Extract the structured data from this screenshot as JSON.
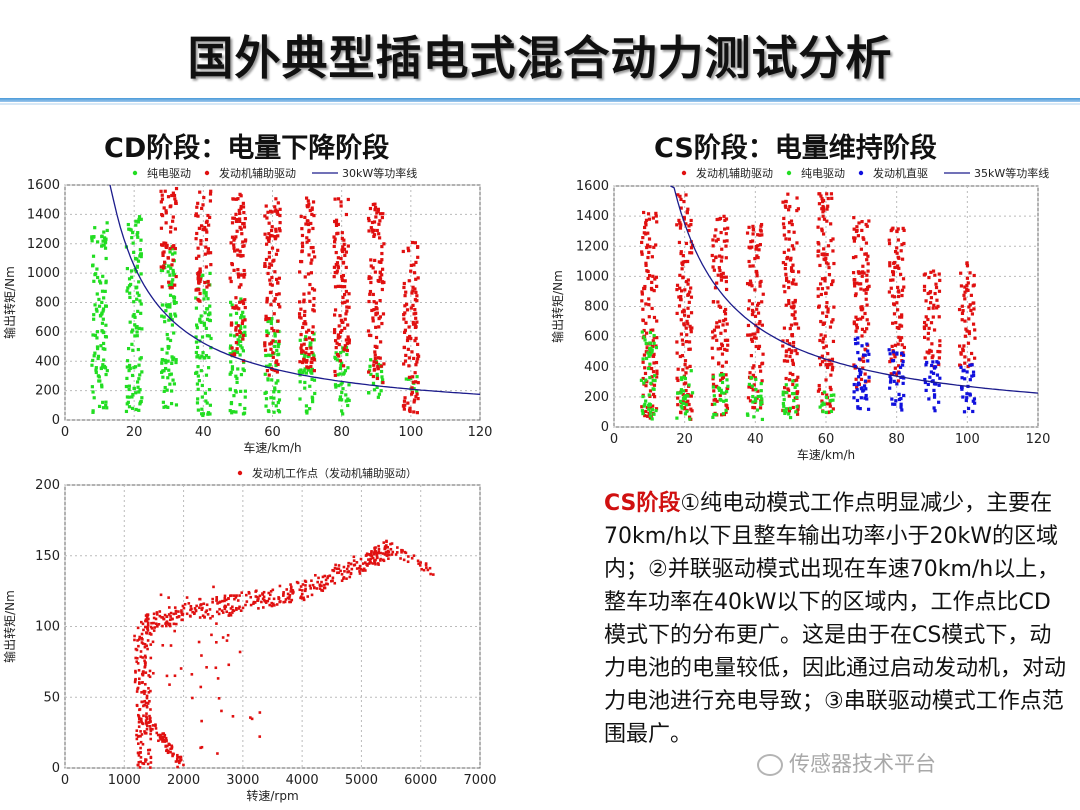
{
  "title": "国外典型插电式混合动力测试分析",
  "headings": {
    "cd": "CD阶段：电量下降阶段",
    "cs": "CS阶段：电量维持阶段"
  },
  "caption": {
    "highlight": "CS阶段",
    "text": "①纯电动模式工作点明显减少，主要在70km/h以下且整车输出功率小于20kW的区域内；②并联驱动模式出现在车速70km/h以上，整车功率在40kW以下的区域内，工作点比CD模式下的分布更广。这是由于在CS模式下，动力电池的电量较低，因此通过启动发动机，对动力电池进行充电导致；③串联驱动模式工作点范围最广。"
  },
  "watermark": "传感器技术平台",
  "colors": {
    "ev": "#22dd22",
    "assist": "#e01010",
    "direct": "#1010dd",
    "power_line": "#1c1c8c"
  },
  "chart_data": [
    {
      "type": "scatter",
      "xlabel": "车速/km/h",
      "ylabel": "输出转矩/Nm",
      "xlim": [
        0,
        120
      ],
      "ylim": [
        0,
        1600
      ],
      "xticks": [
        0,
        20,
        40,
        60,
        80,
        100,
        120
      ],
      "yticks": [
        0,
        200,
        400,
        600,
        800,
        1000,
        1200,
        1400,
        1600
      ],
      "legend_placement": "top",
      "series": [
        {
          "name": "纯电驱动",
          "color": "#22dd22",
          "kind": "clusters",
          "clusters": [
            [
              10,
              50,
              1350
            ],
            [
              20,
              50,
              1400
            ],
            [
              30,
              60,
              1200
            ],
            [
              40,
              30,
              1000
            ],
            [
              50,
              30,
              850
            ],
            [
              60,
              30,
              700
            ],
            [
              70,
              40,
              600
            ],
            [
              80,
              40,
              500
            ],
            [
              90,
              150,
              420
            ],
            [
              100,
              180,
              300
            ]
          ]
        },
        {
          "name": "发动机辅助驱动",
          "color": "#e01010",
          "kind": "clusters",
          "clusters": [
            [
              30,
              900,
              1580
            ],
            [
              40,
              800,
              1570
            ],
            [
              50,
              400,
              1550
            ],
            [
              60,
              300,
              1530
            ],
            [
              70,
              300,
              1520
            ],
            [
              80,
              300,
              1510
            ],
            [
              90,
              250,
              1480
            ],
            [
              100,
              50,
              1230
            ]
          ]
        },
        {
          "name": "30kW等功率线",
          "color": "#1c1c8c",
          "kind": "power_curve",
          "k": 21000,
          "x_start": 13,
          "x_end": 120
        }
      ]
    },
    {
      "type": "scatter",
      "xlabel": "车速/km/h",
      "ylabel": "输出转矩/Nm",
      "xlim": [
        0,
        120
      ],
      "ylim": [
        0,
        1600
      ],
      "xticks": [
        0,
        20,
        40,
        60,
        80,
        100,
        120
      ],
      "yticks": [
        0,
        200,
        400,
        600,
        800,
        1000,
        1200,
        1400,
        1600
      ],
      "legend_placement": "top",
      "series": [
        {
          "name": "发动机辅助驱动",
          "color": "#e01010",
          "kind": "clusters",
          "clusters": [
            [
              10,
              50,
              1430
            ],
            [
              20,
              50,
              1580
            ],
            [
              30,
              80,
              1400
            ],
            [
              40,
              100,
              1350
            ],
            [
              50,
              80,
              1550
            ],
            [
              60,
              80,
              1550
            ],
            [
              70,
              250,
              1400
            ],
            [
              80,
              300,
              1320
            ],
            [
              90,
              400,
              1060
            ],
            [
              100,
              400,
              1100
            ]
          ]
        },
        {
          "name": "纯电驱动",
          "color": "#22dd22",
          "kind": "clusters",
          "clusters": [
            [
              10,
              50,
              650
            ],
            [
              20,
              50,
              380
            ],
            [
              30,
              50,
              350
            ],
            [
              40,
              50,
              330
            ],
            [
              50,
              50,
              320
            ],
            [
              60,
              80,
              250
            ]
          ]
        },
        {
          "name": "发动机直驱",
          "color": "#1010dd",
          "kind": "clusters",
          "clusters": [
            [
              70,
              100,
              600
            ],
            [
              80,
              100,
              520
            ],
            [
              90,
              100,
              450
            ],
            [
              100,
              80,
              420
            ]
          ]
        },
        {
          "name": "35kW等功率线",
          "color": "#1c1c8c",
          "kind": "power_curve",
          "k": 27000,
          "x_start": 16,
          "x_end": 120
        }
      ]
    },
    {
      "type": "scatter",
      "xlabel": "转速/rpm",
      "ylabel": "输出转矩/Nm",
      "xlim": [
        0,
        7000
      ],
      "ylim": [
        0,
        200
      ],
      "xticks": [
        0,
        1000,
        2000,
        3000,
        4000,
        5000,
        6000,
        7000
      ],
      "yticks": [
        0,
        50,
        100,
        150,
        200
      ],
      "legend_placement": "top",
      "series": [
        {
          "name": "发动机工作点（发动机辅助驱动）",
          "color": "#e01010",
          "kind": "engine_map",
          "band": [
            [
              1300,
              100
            ],
            [
              2000,
              110
            ],
            [
              3000,
              118
            ],
            [
              4000,
              125
            ],
            [
              5000,
              145
            ],
            [
              5500,
              155
            ]
          ],
          "vertical": [
            1200,
            1450,
            100
          ],
          "tail": [
            [
              1400,
              35
            ],
            [
              2000,
              0
            ]
          ],
          "tail_end": [
            [
              5500,
              155
            ],
            [
              6200,
              140
            ]
          ]
        }
      ]
    }
  ]
}
